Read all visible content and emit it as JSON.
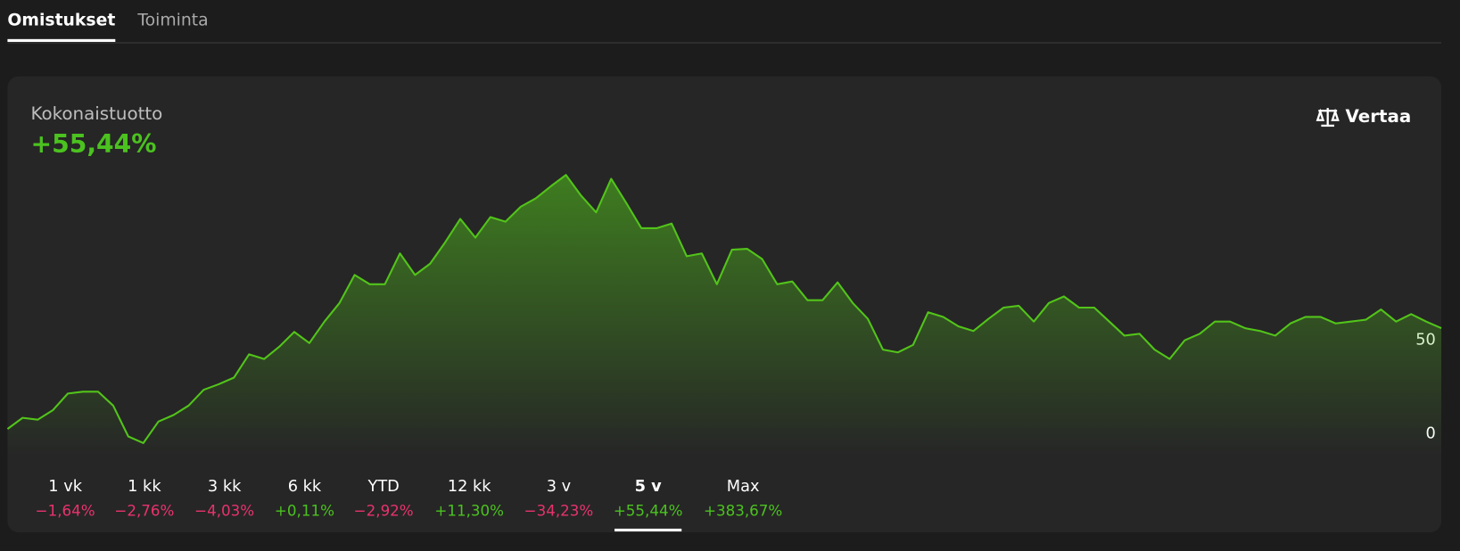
{
  "tabs": [
    {
      "label": "Omistukset",
      "active": true
    },
    {
      "label": "Toiminta",
      "active": false
    }
  ],
  "card": {
    "title": "Kokonaistuotto",
    "value": "+55,44%",
    "compare_button": "Vertaa"
  },
  "chart_data": {
    "type": "line",
    "color": "#52c41a",
    "values": [
      2.5,
      8.5,
      7.5,
      12.5,
      21.5,
      22.5,
      22.5,
      15,
      -1.5,
      -5,
      6.5,
      10,
      15,
      23.5,
      26.5,
      30,
      42.5,
      40,
      46.5,
      54.5,
      48.5,
      60,
      70,
      85,
      80,
      80,
      96.5,
      85,
      91,
      102.5,
      115,
      105,
      116,
      113.5,
      121.5,
      126,
      132.5,
      138.5,
      127.5,
      118.5,
      136.5,
      123.5,
      110,
      110,
      112.5,
      95,
      96.5,
      80,
      98.5,
      99,
      93.5,
      80,
      81.5,
      71.5,
      71.5,
      81,
      70,
      61.5,
      45,
      43.5,
      47.5,
      65,
      62.5,
      57.5,
      55,
      61.5,
      67.5,
      68.5,
      60,
      70,
      73.5,
      67.5,
      67.5,
      60,
      52.5,
      53.5,
      45,
      40,
      50,
      53.5,
      60,
      60,
      56.5,
      55,
      52.5,
      59,
      62.5,
      62.5,
      59,
      60,
      61,
      66.5,
      60,
      64,
      60,
      56.5
    ],
    "ylim": [
      -12,
      145
    ],
    "yticks": [
      0,
      50
    ],
    "grid": false
  },
  "periods": [
    {
      "label": "1 vk",
      "change": "−1,64%",
      "color": "#e8336d",
      "active": false
    },
    {
      "label": "1 kk",
      "change": "−2,76%",
      "color": "#e8336d",
      "active": false
    },
    {
      "label": "3 kk",
      "change": "−4,03%",
      "color": "#e8336d",
      "active": false
    },
    {
      "label": "6 kk",
      "change": "+0,11%",
      "color": "#4bc21f",
      "active": false
    },
    {
      "label": "YTD",
      "change": "−2,92%",
      "color": "#e8336d",
      "active": false
    },
    {
      "label": "12 kk",
      "change": "+11,30%",
      "color": "#4bc21f",
      "active": false
    },
    {
      "label": "3 v",
      "change": "−34,23%",
      "color": "#e8336d",
      "active": false
    },
    {
      "label": "5 v",
      "change": "+55,44%",
      "color": "#4bc21f",
      "active": true
    },
    {
      "label": "Max",
      "change": "+383,67%",
      "color": "#4bc21f",
      "active": false
    }
  ]
}
